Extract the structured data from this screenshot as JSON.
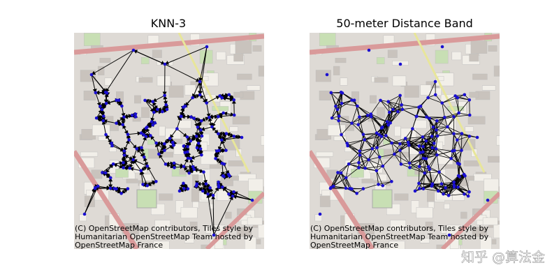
{
  "panels": [
    {
      "title": "KNN-3",
      "attribution": [
        "(C) OpenStreetMap contributors, Tiles style by",
        "Humanitarian OpenStreetMap Team hosted by",
        "OpenStreetMap France"
      ]
    },
    {
      "title": "50-meter Distance Band",
      "attribution": [
        "(C) OpenStreetMap contributors, Tiles style by",
        "Humanitarian OpenStreetMap Team hosted by",
        "OpenStreetMap France"
      ]
    }
  ],
  "watermark": "知乎 @算法金"
}
